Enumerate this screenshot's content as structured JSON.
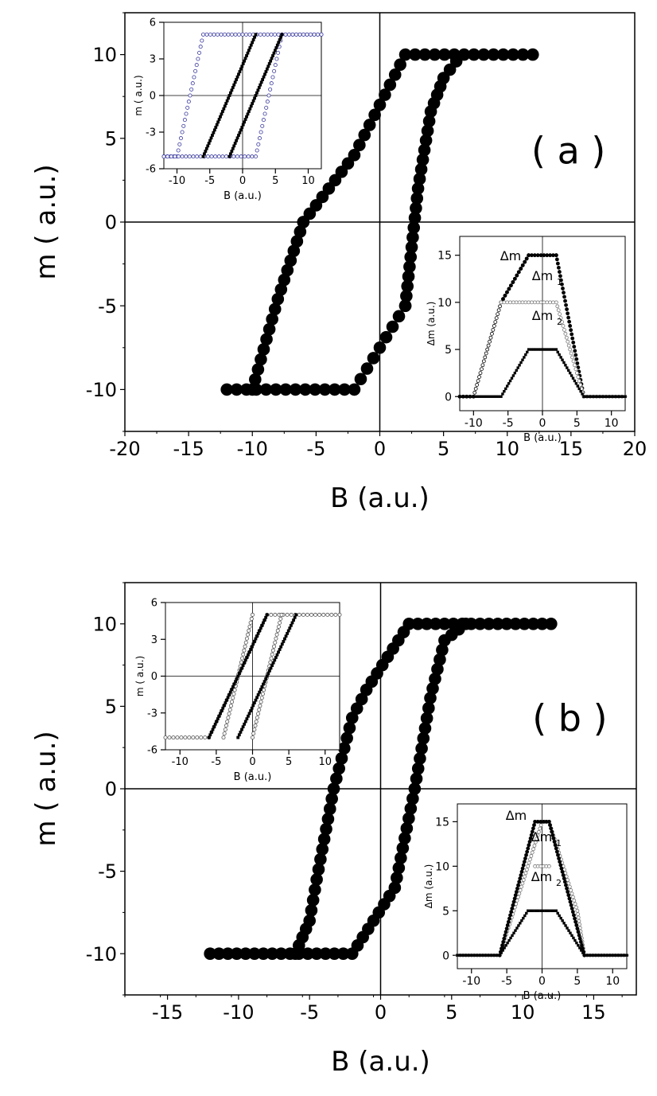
{
  "chart_data": [
    {
      "panel": "a",
      "type": "scatter",
      "panel_label": "( a )",
      "xlabel": "B (a.u.)",
      "ylabel": "m ( a.u.)",
      "xlim": [
        -20,
        20
      ],
      "ylim": [
        -12.5,
        12.5
      ],
      "xticks": [
        -20,
        -15,
        -10,
        -5,
        0,
        5,
        10,
        15,
        20
      ],
      "yticks": [
        -10,
        -5,
        0,
        5,
        10
      ],
      "series": [
        {
          "marker": "filled-circle",
          "color": "#000000",
          "hysteresis": {
            "saturation": 10,
            "left_start": -12,
            "left_flat_end": -2,
            "left_knee": [
              2,
              10
            ],
            "left_end": -12,
            "upper_end": 12,
            "upper_lower_knee": [
              -6,
              0
            ],
            "right_upper_knee": [
              6,
              10
            ],
            "right_lower_knee": [
              2,
              -5
            ],
            "lower_knee_left": [
              -10,
              -10
            ]
          }
        }
      ],
      "insets": [
        {
          "type": "scatter",
          "xlabel": "B (a.u.)",
          "ylabel": "m ( a.u.)",
          "xlim": [
            -12,
            12
          ],
          "ylim": [
            -6,
            6
          ],
          "xticks": [
            -10,
            -5,
            0,
            5,
            10
          ],
          "yticks": [
            -6,
            -3,
            0,
            3,
            6
          ],
          "series": [
            {
              "marker": "open-circle",
              "color": "#3a3aa0",
              "points": [
                [
                  -10,
                  -5
                ],
                [
                  -6,
                  5
                ],
                [
                  12,
                  5
                ],
                [
                  10,
                  5
                ],
                [
                  6,
                  5
                ],
                [
                  2,
                  -5
                ],
                [
                  -12,
                  -5
                ]
              ]
            },
            {
              "marker": "filled-square",
              "color": "#000000",
              "points": [
                [
                  -6,
                  -5
                ],
                [
                  2,
                  5
                ],
                [
                  -2,
                  -5
                ],
                [
                  6,
                  5
                ]
              ]
            }
          ]
        },
        {
          "type": "scatter",
          "xlabel": "B (a.u.)",
          "ylabel": "Δm (a.u.)",
          "xlim": [
            -12,
            12
          ],
          "ylim": [
            -1.5,
            17
          ],
          "xticks": [
            -10,
            -5,
            0,
            5,
            10
          ],
          "yticks": [
            0,
            5,
            10,
            15
          ],
          "annotations": [
            "Δm",
            "Δm",
            "1",
            "Δm",
            "2"
          ],
          "series": [
            {
              "name": "Δm",
              "marker": "filled-circle",
              "color": "#000000",
              "points": [
                [
                  -10,
                  0
                ],
                [
                  -6,
                  10
                ],
                [
                  -2,
                  15
                ],
                [
                  2,
                  15
                ],
                [
                  6,
                  0
                ],
                [
                  12,
                  0
                ]
              ]
            },
            {
              "name": "Δm1",
              "marker": "open-circle",
              "color": "#555555",
              "points": [
                [
                  -12,
                  0
                ],
                [
                  -10,
                  0
                ],
                [
                  -6,
                  10
                ],
                [
                  2,
                  10
                ],
                [
                  6,
                  0
                ],
                [
                  12,
                  0
                ]
              ]
            },
            {
              "name": "Δm2",
              "marker": "filled-square",
              "color": "#000000",
              "points": [
                [
                  -12,
                  0
                ],
                [
                  -6,
                  0
                ],
                [
                  -2,
                  5
                ],
                [
                  2,
                  5
                ],
                [
                  6,
                  0
                ],
                [
                  12,
                  0
                ]
              ]
            }
          ]
        }
      ]
    },
    {
      "panel": "b",
      "type": "scatter",
      "panel_label": "( b )",
      "xlabel": "B (a.u.)",
      "ylabel": "m ( a.u.)",
      "xlim": [
        -18,
        18
      ],
      "ylim": [
        -12.5,
        12.5
      ],
      "xticks": [
        -15,
        -10,
        -5,
        0,
        5,
        10,
        15
      ],
      "yticks": [
        -10,
        -5,
        0,
        5,
        10
      ],
      "series": [
        {
          "marker": "filled-circle",
          "color": "#000000"
        }
      ],
      "insets": [
        {
          "type": "scatter",
          "xlabel": "B (a.u.)",
          "ylabel": "m ( a.u.)",
          "xlim": [
            -12,
            12
          ],
          "ylim": [
            -6,
            6
          ],
          "xticks": [
            -10,
            -5,
            0,
            5,
            10
          ],
          "yticks": [
            -6,
            -3,
            0,
            3,
            6
          ]
        },
        {
          "type": "scatter",
          "xlabel": "B (a.u.)",
          "ylabel": "Δm (a.u.)",
          "xlim": [
            -12,
            12
          ],
          "ylim": [
            -1.5,
            17
          ],
          "xticks": [
            -10,
            -5,
            0,
            5,
            10
          ],
          "yticks": [
            0,
            5,
            10,
            15
          ],
          "annotations": [
            "Δm",
            "Δm",
            "1",
            "Δm",
            "2"
          ]
        }
      ]
    }
  ]
}
